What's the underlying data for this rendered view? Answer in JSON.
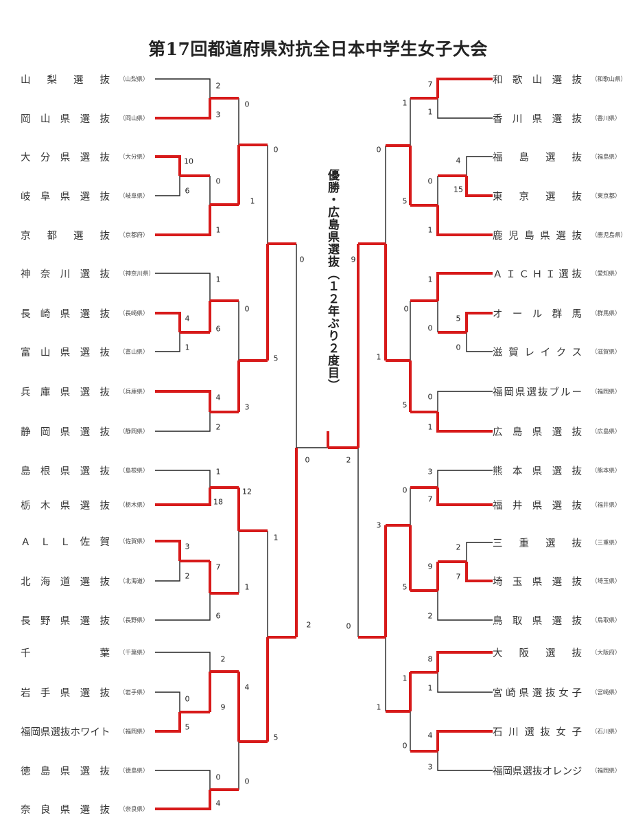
{
  "title": "第17回都道府県対抗全日本中学生女子大会",
  "champion_note": "優勝・広島県選抜（１２年ぶり２度目）",
  "colors": {
    "winner_line": "#d71a1a",
    "loser_line": "#222222"
  },
  "left_teams": [
    {
      "name": "山梨選抜",
      "pref": "（山梨県）"
    },
    {
      "name": "岡山県選抜",
      "pref": "（岡山県）"
    },
    {
      "name": "大分県選抜",
      "pref": "（大分県）"
    },
    {
      "name": "岐阜県選抜",
      "pref": "（岐阜県）"
    },
    {
      "name": "京都選抜",
      "pref": "（京都府）"
    },
    {
      "name": "神奈川選抜",
      "pref": "（神奈川県）"
    },
    {
      "name": "長崎県選抜",
      "pref": "（長崎県）"
    },
    {
      "name": "富山県選抜",
      "pref": "（富山県）"
    },
    {
      "name": "兵庫県選抜",
      "pref": "（兵庫県）"
    },
    {
      "name": "静岡県選抜",
      "pref": "（静岡県）"
    },
    {
      "name": "島根県選抜",
      "pref": "（島根県）"
    },
    {
      "name": "栃木県選抜",
      "pref": "（栃木県）"
    },
    {
      "name": "ＡＬＬ佐賀",
      "pref": "（佐賀県）"
    },
    {
      "name": "北海道選抜",
      "pref": "（北海道）"
    },
    {
      "name": "長野県選抜",
      "pref": "（長野県）"
    },
    {
      "name": "千葉",
      "pref": "（千葉県）"
    },
    {
      "name": "岩手県選抜",
      "pref": "（岩手県）"
    },
    {
      "name": "福岡県選抜ホワイト",
      "pref": "（福岡県）"
    },
    {
      "name": "徳島県選抜",
      "pref": "（徳島県）"
    },
    {
      "name": "奈良県選抜",
      "pref": "（奈良県）"
    }
  ],
  "right_teams": [
    {
      "name": "和歌山選抜",
      "pref": "（和歌山県）"
    },
    {
      "name": "香川県選抜",
      "pref": "（香川県）"
    },
    {
      "name": "福島選抜",
      "pref": "（福島県）"
    },
    {
      "name": "東京選抜",
      "pref": "（東京都）"
    },
    {
      "name": "鹿児島県選抜",
      "pref": "（鹿児島県）"
    },
    {
      "name": "ＡＩＣＨＩ選抜",
      "pref": "（愛知県）"
    },
    {
      "name": "オール群馬",
      "pref": "（群馬県）"
    },
    {
      "name": "滋賀レイクス",
      "pref": "（滋賀県）"
    },
    {
      "name": "福岡県選抜ブルー",
      "pref": "（福岡県）"
    },
    {
      "name": "広島県選抜",
      "pref": "（広島県）"
    },
    {
      "name": "熊本県選抜",
      "pref": "（熊本県）"
    },
    {
      "name": "福井県選抜",
      "pref": "（福井県）"
    },
    {
      "name": "三重選抜",
      "pref": "（三重県）"
    },
    {
      "name": "埼玉県選抜",
      "pref": "（埼玉県）"
    },
    {
      "name": "鳥取県選抜",
      "pref": "（鳥取県）"
    },
    {
      "name": "大阪選抜",
      "pref": "（大阪府）"
    },
    {
      "name": "宮崎県選抜女子",
      "pref": "（宮崎県）"
    },
    {
      "name": "石川選抜女子",
      "pref": "（石川県）"
    },
    {
      "name": "福岡県選抜オレンジ",
      "pref": "（福岡県）"
    }
  ],
  "scores": {
    "left": [
      "2",
      "3",
      "10",
      "6",
      "0",
      "1",
      "0",
      "1",
      "4",
      "1",
      "1",
      "6",
      "4",
      "2",
      "0",
      "3",
      "0",
      "5",
      "1",
      "18",
      "3",
      "2",
      "7",
      "6",
      "12",
      "1",
      "0",
      "5",
      "2",
      "9",
      "0",
      "4",
      "4",
      "0",
      "1",
      "5",
      "0",
      "2"
    ],
    "right": [
      "7",
      "1",
      "4",
      "15",
      "0",
      "1",
      "1",
      "5",
      "5",
      "0",
      "1",
      "0",
      "0",
      "1",
      "0",
      "5",
      "0",
      "1",
      "3",
      "7",
      "2",
      "7",
      "9",
      "2",
      "0",
      "5",
      "8",
      "1",
      "4",
      "3",
      "1",
      "0",
      "3",
      "1",
      "9",
      "0"
    ],
    "final": [
      "0",
      "2"
    ]
  }
}
